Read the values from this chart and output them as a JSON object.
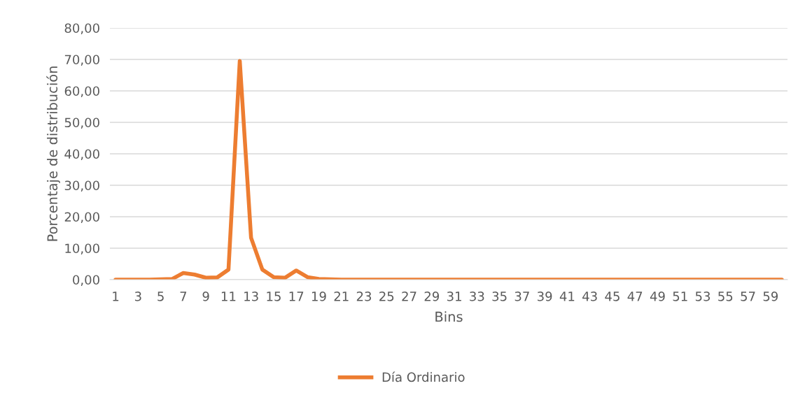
{
  "chart_data": {
    "type": "line",
    "xlabel": "Bins",
    "ylabel": "Porcentaje de distribución",
    "categories": [
      "1",
      null,
      "3",
      null,
      "5",
      null,
      "7",
      null,
      "9",
      null,
      "11",
      null,
      "13",
      null,
      "15",
      null,
      "17",
      null,
      "19",
      null,
      "21",
      null,
      "23",
      null,
      "25",
      null,
      "27",
      null,
      "29",
      null,
      "31",
      null,
      "33",
      null,
      "35",
      null,
      "37",
      null,
      "39",
      null,
      "41",
      null,
      "43",
      null,
      "45",
      null,
      "47",
      null,
      "49",
      null,
      "51",
      null,
      "53",
      null,
      "55",
      null,
      "57",
      null,
      "59",
      null
    ],
    "series": [
      {
        "name": "Día Ordinario",
        "color": "#ed7d31",
        "values": [
          0,
          0,
          0,
          0,
          0.1,
          0.2,
          2.1,
          1.6,
          0.6,
          0.7,
          3.2,
          69.5,
          13.3,
          3.2,
          0.8,
          0.6,
          2.9,
          0.8,
          0.2,
          0.1,
          0,
          0,
          0,
          0,
          0,
          0,
          0,
          0,
          0,
          0,
          0,
          0,
          0,
          0,
          0,
          0,
          0,
          0,
          0,
          0,
          0,
          0,
          0,
          0,
          0,
          0,
          0,
          0,
          0,
          0,
          0,
          0,
          0,
          0,
          0,
          0,
          0,
          0,
          0,
          0
        ]
      }
    ],
    "ylim": [
      0,
      80
    ],
    "yticks": [
      {
        "value": 0,
        "label": "0,00"
      },
      {
        "value": 10,
        "label": "10,00"
      },
      {
        "value": 20,
        "label": "20,00"
      },
      {
        "value": 30,
        "label": "30,00"
      },
      {
        "value": 40,
        "label": "40,00"
      },
      {
        "value": 50,
        "label": "50,00"
      },
      {
        "value": 60,
        "label": "60,00"
      },
      {
        "value": 70,
        "label": "70,00"
      },
      {
        "value": 80,
        "label": "80,00"
      }
    ],
    "grid": "y",
    "legend": "bottom",
    "marker": "none",
    "line_style": "solid"
  }
}
